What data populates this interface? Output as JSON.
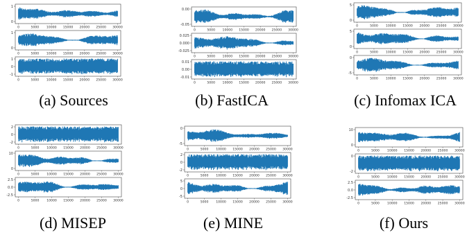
{
  "colors": {
    "signal": "#1f77b4",
    "frame": "#444444",
    "background": "#ffffff"
  },
  "chart_data": {
    "type": "line",
    "x_range": [
      0,
      30000
    ],
    "x_ticks": [
      "0",
      "5000",
      "10000",
      "15000",
      "20000",
      "25000",
      "30000"
    ],
    "panels": [
      {
        "caption": "(a) Sources",
        "subplots": [
          {
            "signal": "speech",
            "ylim": [
              -1,
              1
            ],
            "yticks": [
              "1",
              "0"
            ]
          },
          {
            "signal": "speech",
            "ylim": [
              -1,
              1
            ],
            "yticks": [
              "1",
              "0"
            ]
          },
          {
            "signal": "noise",
            "ylim": [
              -1,
              1
            ],
            "yticks": [
              "1",
              "0",
              "-1"
            ]
          }
        ]
      },
      {
        "caption": "(b) FastICA",
        "subplots": [
          {
            "signal": "speech",
            "ylim": [
              -0.05,
              0.02
            ],
            "yticks": [
              "0.00",
              "-0.05"
            ]
          },
          {
            "signal": "speech",
            "ylim": [
              -0.03,
              0.03
            ],
            "yticks": [
              "0.025",
              "0.000",
              "-0.025"
            ]
          },
          {
            "signal": "noise",
            "ylim": [
              -0.012,
              0.012
            ],
            "yticks": [
              "0.01",
              "0.00",
              "-0.01"
            ]
          }
        ]
      },
      {
        "caption": "(c) Infomax ICA",
        "subplots": [
          {
            "signal": "speech",
            "ylim": [
              -2,
              6
            ],
            "yticks": [
              "5",
              "0"
            ]
          },
          {
            "signal": "speech",
            "ylim": [
              -3,
              7
            ],
            "yticks": [
              "5",
              "0"
            ]
          },
          {
            "signal": "speech",
            "ylim": [
              -7,
              3
            ],
            "yticks": [
              "0",
              "-5"
            ]
          }
        ]
      },
      {
        "caption": "(d) MISEP",
        "subplots": [
          {
            "signal": "noise",
            "ylim": [
              -2,
              2
            ],
            "yticks": [
              "2",
              "0",
              "-2"
            ]
          },
          {
            "signal": "speech",
            "ylim": [
              -2,
              10
            ],
            "yticks": [
              "10",
              "0"
            ]
          },
          {
            "signal": "speech",
            "ylim": [
              -3,
              3
            ],
            "yticks": [
              "2.5",
              "0.0",
              "-2.5"
            ]
          }
        ]
      },
      {
        "caption": "(e) MINE",
        "subplots": [
          {
            "signal": "speech",
            "ylim": [
              -6,
              3
            ],
            "yticks": [
              "0",
              "-5"
            ]
          },
          {
            "signal": "noise",
            "ylim": [
              -2.5,
              2.5
            ],
            "yticks": [
              "2",
              "0",
              "-2"
            ]
          },
          {
            "signal": "speech",
            "ylim": [
              -6,
              7
            ],
            "yticks": [
              "5",
              "0",
              "-5"
            ]
          }
        ]
      },
      {
        "caption": "(f) Ours",
        "subplots": [
          {
            "signal": "speech",
            "ylim": [
              -3,
              13
            ],
            "yticks": [
              "10",
              "0"
            ]
          },
          {
            "signal": "noise",
            "ylim": [
              -2,
              2
            ],
            "yticks": [
              "0",
              "-2"
            ]
          },
          {
            "signal": "speech",
            "ylim": [
              -3,
              3
            ],
            "yticks": [
              "2.5",
              "0.0",
              "-2.5"
            ]
          }
        ]
      }
    ]
  }
}
